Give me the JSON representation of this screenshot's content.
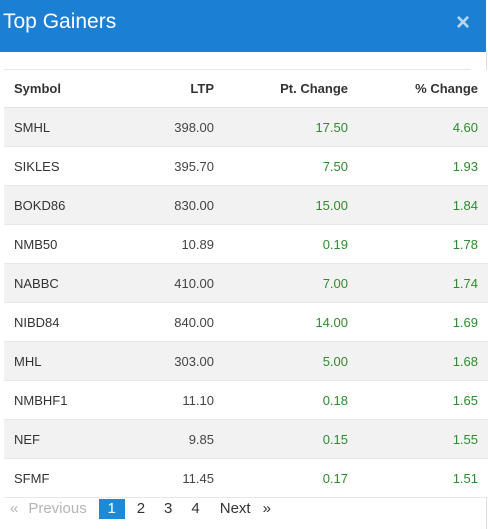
{
  "modal": {
    "title": "Top Gainers",
    "close_label": "×"
  },
  "table": {
    "headers": [
      "Symbol",
      "LTP",
      "Pt. Change",
      "% Change"
    ],
    "rows": [
      [
        "SMHL",
        "398.00",
        "17.50",
        "4.60"
      ],
      [
        "SIKLES",
        "395.70",
        "7.50",
        "1.93"
      ],
      [
        "BOKD86",
        "830.00",
        "15.00",
        "1.84"
      ],
      [
        "NMB50",
        "10.89",
        "0.19",
        "1.78"
      ],
      [
        "NABBC",
        "410.00",
        "7.00",
        "1.74"
      ],
      [
        "NIBD84",
        "840.00",
        "14.00",
        "1.69"
      ],
      [
        "MHL",
        "303.00",
        "5.00",
        "1.68"
      ],
      [
        "NMBHF1",
        "11.10",
        "0.18",
        "1.65"
      ],
      [
        "NEF",
        "9.85",
        "0.15",
        "1.55"
      ],
      [
        "SFMF",
        "11.45",
        "0.17",
        "1.51"
      ]
    ]
  },
  "pagination": {
    "first": "«",
    "previous": "Previous",
    "pages": [
      "1",
      "2",
      "3",
      "4"
    ],
    "active_page": "1",
    "next": "Next",
    "last": "»"
  },
  "colors": {
    "header_bg": "#1b7fd4",
    "positive": "#2e8b2e",
    "active_page_bg": "#1b8ad8"
  }
}
